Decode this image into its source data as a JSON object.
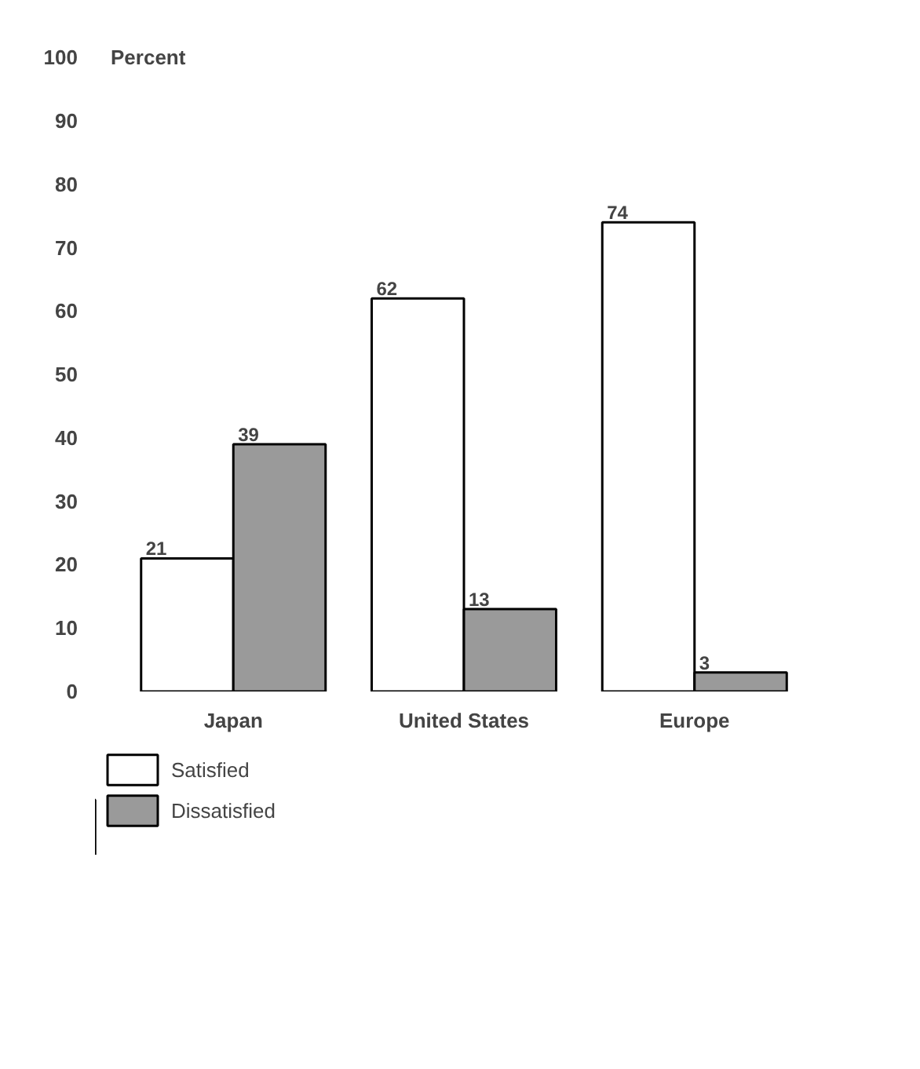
{
  "chart_data": {
    "type": "bar",
    "ylabel": "Percent",
    "categories": [
      "Japan",
      "United States",
      "Europe"
    ],
    "series": [
      {
        "name": "Satisfied",
        "color": "#ffffff",
        "values": [
          21,
          62,
          74
        ]
      },
      {
        "name": "Dissatisfied",
        "color": "#9a9a9a",
        "values": [
          39,
          13,
          3
        ]
      }
    ],
    "ylim": [
      0,
      100
    ],
    "yticks": [
      0,
      10,
      20,
      30,
      40,
      50,
      60,
      70,
      80,
      90,
      100
    ],
    "grid": false,
    "legend": "bottom left",
    "data_labels": true
  }
}
